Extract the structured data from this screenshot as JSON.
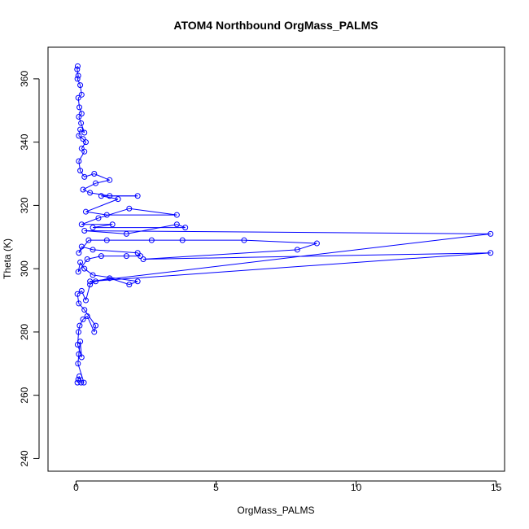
{
  "chart_data": {
    "type": "scatter",
    "title": "ATOM4 Northbound OrgMass_PALMS",
    "xlabel": "OrgMass_PALMS",
    "ylabel": "Theta (K)",
    "xlim": [
      -1,
      15.3
    ],
    "ylim": [
      236,
      370
    ],
    "x_ticks": [
      0,
      5,
      10,
      15
    ],
    "y_ticks": [
      240,
      260,
      280,
      300,
      320,
      340,
      360
    ],
    "grid": false,
    "legend": "none",
    "series": [
      {
        "color": "#0000ff",
        "connected": true,
        "points": [
          [
            0.05,
            264
          ],
          [
            0.08,
            265
          ],
          [
            0.12,
            266
          ],
          [
            0.18,
            264
          ],
          [
            0.28,
            264
          ],
          [
            0.07,
            270
          ],
          [
            0.1,
            273
          ],
          [
            0.15,
            277
          ],
          [
            0.2,
            272
          ],
          [
            0.06,
            276
          ],
          [
            0.09,
            280
          ],
          [
            0.13,
            282
          ],
          [
            0.25,
            284
          ],
          [
            0.4,
            285
          ],
          [
            0.65,
            280
          ],
          [
            0.7,
            282
          ],
          [
            0.3,
            287
          ],
          [
            0.1,
            289
          ],
          [
            0.05,
            292
          ],
          [
            0.2,
            293
          ],
          [
            0.35,
            290
          ],
          [
            0.5,
            295
          ],
          [
            0.7,
            296
          ],
          [
            1.2,
            297
          ],
          [
            1.9,
            295
          ],
          [
            2.2,
            296
          ],
          [
            0.6,
            298
          ],
          [
            0.3,
            300
          ],
          [
            0.15,
            302
          ],
          [
            0.08,
            299
          ],
          [
            0.4,
            303
          ],
          [
            0.9,
            304
          ],
          [
            1.8,
            304
          ],
          [
            2.3,
            304
          ],
          [
            2.2,
            305
          ],
          [
            0.6,
            306
          ],
          [
            0.2,
            307
          ],
          [
            0.1,
            305
          ],
          [
            0.45,
            309
          ],
          [
            1.1,
            309
          ],
          [
            2.7,
            309
          ],
          [
            3.8,
            309
          ],
          [
            6.0,
            309
          ],
          [
            8.6,
            308
          ],
          [
            7.9,
            306
          ],
          [
            2.4,
            303
          ],
          [
            14.8,
            305
          ],
          [
            0.5,
            296
          ],
          [
            14.8,
            311
          ],
          [
            0.3,
            312
          ],
          [
            1.8,
            311
          ],
          [
            3.6,
            314
          ],
          [
            3.9,
            313
          ],
          [
            0.6,
            313
          ],
          [
            1.3,
            314
          ],
          [
            0.2,
            314
          ],
          [
            0.8,
            316
          ],
          [
            1.9,
            319
          ],
          [
            3.6,
            317
          ],
          [
            1.1,
            317
          ],
          [
            0.35,
            318
          ],
          [
            1.5,
            322
          ],
          [
            0.9,
            323
          ],
          [
            2.2,
            323
          ],
          [
            1.2,
            323
          ],
          [
            0.5,
            324
          ],
          [
            0.25,
            325
          ],
          [
            0.7,
            327
          ],
          [
            1.2,
            328
          ],
          [
            0.65,
            330
          ],
          [
            0.3,
            329
          ],
          [
            0.15,
            331
          ],
          [
            0.1,
            334
          ],
          [
            0.3,
            337
          ],
          [
            0.2,
            338
          ],
          [
            0.35,
            340
          ],
          [
            0.25,
            341
          ],
          [
            0.1,
            342
          ],
          [
            0.15,
            344
          ],
          [
            0.3,
            343
          ],
          [
            0.18,
            346
          ],
          [
            0.1,
            348
          ],
          [
            0.2,
            349
          ],
          [
            0.12,
            351
          ],
          [
            0.08,
            354
          ],
          [
            0.2,
            355
          ],
          [
            0.15,
            358
          ],
          [
            0.05,
            360
          ],
          [
            0.08,
            361
          ],
          [
            0.04,
            363
          ],
          [
            0.06,
            364
          ]
        ]
      }
    ]
  }
}
